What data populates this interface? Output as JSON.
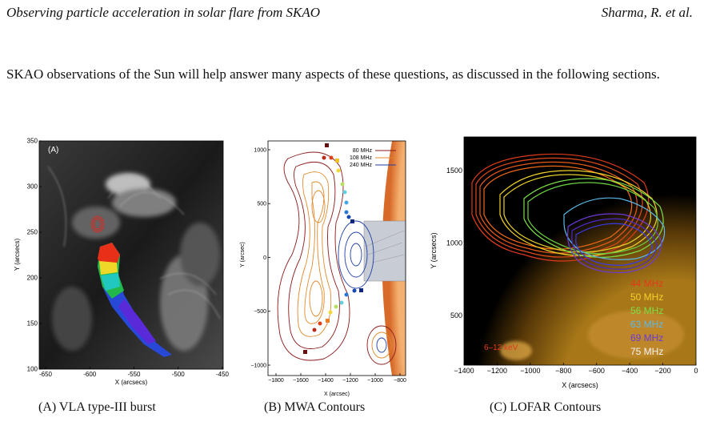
{
  "header": {
    "left": "Observing particle acceleration in solar flare from SKAO",
    "right": "Sharma, R. et al."
  },
  "paragraph": "SKAO observations of the Sun will help answer many aspects of these questions, as discussed in the following sections.",
  "figures": [
    {
      "caption": "(A) VLA type-III burst",
      "panel_label": "(A)",
      "xlabel": "X (arcsecs)",
      "ylabel": "Y (arcsecs)",
      "xticks": [
        "-650",
        "-600",
        "-550",
        "-500",
        "-450"
      ],
      "yticks": [
        "100",
        "150",
        "200",
        "250",
        "300",
        "350"
      ]
    },
    {
      "caption": "(B) MWA Contours",
      "xlabel": "X (arcsec)",
      "ylabel": "Y (arcsec)",
      "xticks": [
        "−1800",
        "−1600",
        "−1400",
        "−1200",
        "−1000",
        "−800"
      ],
      "yticks": [
        "1000",
        "500",
        "0",
        "−500",
        "−1000"
      ],
      "legend": [
        {
          "label": "80 MHz",
          "color": "#8b1a1a"
        },
        {
          "label": "108 MHz",
          "color": "#e08a2c"
        },
        {
          "label": "240 MHz",
          "color": "#1f3fa8"
        }
      ]
    },
    {
      "caption": "(C) LOFAR Contours",
      "xlabel": "X (arcsecs)",
      "ylabel": "Y (arcsecs)",
      "xticks": [
        "−1400",
        "−1200",
        "−1000",
        "−800",
        "−600",
        "−400",
        "−200",
        "0"
      ],
      "yticks": [
        "1500",
        "1000",
        "500"
      ],
      "legend": [
        {
          "label": "44 MHz",
          "color": "#e03a1a"
        },
        {
          "label": "50 MHz",
          "color": "#f2d22a"
        },
        {
          "label": "56 MHz",
          "color": "#7be04a"
        },
        {
          "label": "63 MHz",
          "color": "#5ab8e8"
        },
        {
          "label": "69 MHz",
          "color": "#6a3ad8"
        },
        {
          "label": "75 MHz",
          "color": "#f4f4f4"
        }
      ],
      "annotation": "6–12 keV"
    }
  ]
}
